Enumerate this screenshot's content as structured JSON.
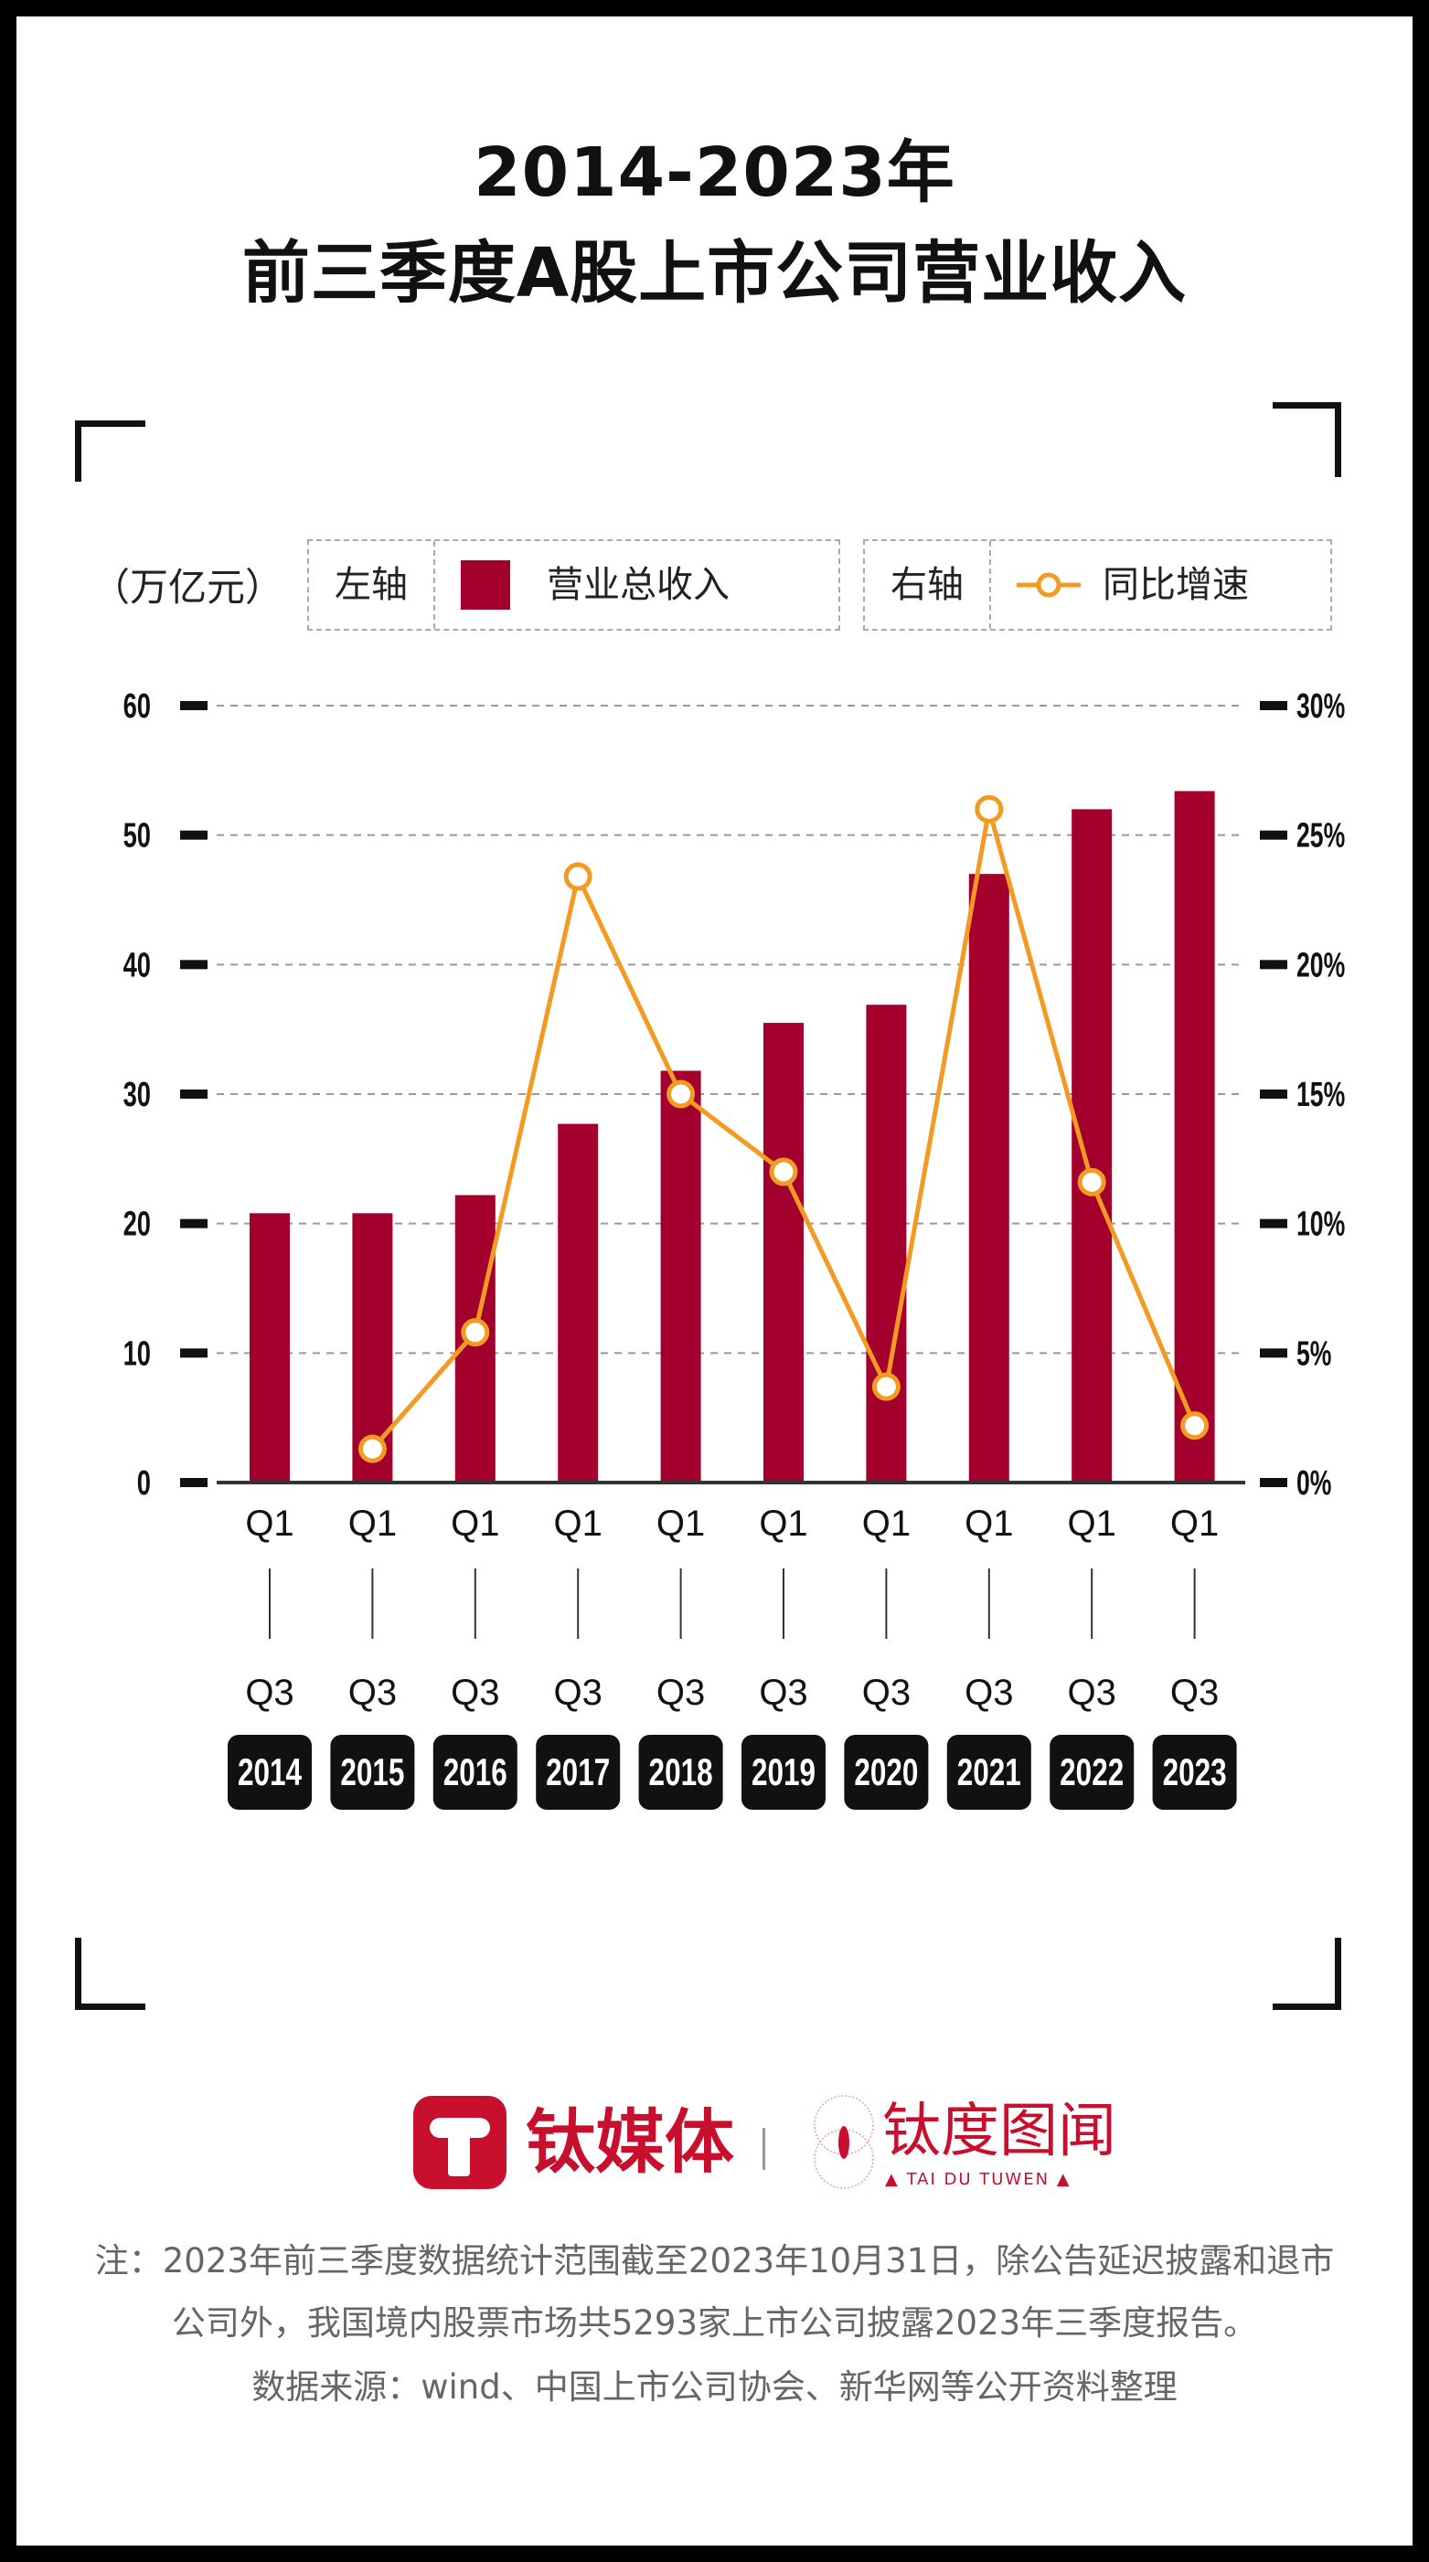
{
  "title": {
    "line1": "2014-2023年",
    "line2": "前三季度A股上市公司营业收入"
  },
  "legend": {
    "unit": "（万亿元）",
    "left_axis_label": "左轴",
    "bar_series_label": "营业总收入",
    "right_axis_label": "右轴",
    "line_series_label": "同比增速"
  },
  "colors": {
    "bar": "#a3002d",
    "line": "#f29a21",
    "grid": "#999999",
    "text": "#222222",
    "badge": "#111111"
  },
  "chart_data": {
    "type": "bar+line",
    "title": "2014-2023年前三季度A股上市公司营业收入",
    "categories": [
      "2014",
      "2015",
      "2016",
      "2017",
      "2018",
      "2019",
      "2020",
      "2021",
      "2022",
      "2023"
    ],
    "period_top": "Q1",
    "period_bottom": "Q3",
    "series": [
      {
        "name": "营业总收入",
        "axis": "left",
        "type": "bar",
        "values": [
          20.8,
          20.8,
          22.2,
          27.7,
          31.8,
          35.5,
          36.9,
          47.0,
          52.0,
          53.4
        ]
      },
      {
        "name": "同比增速",
        "axis": "right",
        "type": "line",
        "values": [
          null,
          1.3,
          5.8,
          23.4,
          15.0,
          12.0,
          3.7,
          26.0,
          11.6,
          2.2
        ]
      }
    ],
    "ylabel": "万亿元",
    "ylim": [
      0,
      60
    ],
    "yticks": [
      "0",
      "10",
      "20",
      "30",
      "40",
      "50",
      "60"
    ],
    "y2lim": [
      0,
      30
    ],
    "y2ticks": [
      "0%",
      "5%",
      "10%",
      "15%",
      "20%",
      "25%",
      "30%"
    ],
    "grid": true,
    "legend_position": "top"
  },
  "footer": {
    "logo1": "钛媒体",
    "logo2": "钛度图闻",
    "logo2_sub": "▲ TAI DU TUWEN ▲",
    "note_line1": "注：2023年前三季度数据统计范围截至2023年10月31日，除公告延迟披露和退市",
    "note_line2": "公司外，我国境内股票市场共5293家上市公司披露2023年三季度报告。",
    "source": "数据来源：wind、中国上市公司协会、新华网等公开资料整理"
  }
}
